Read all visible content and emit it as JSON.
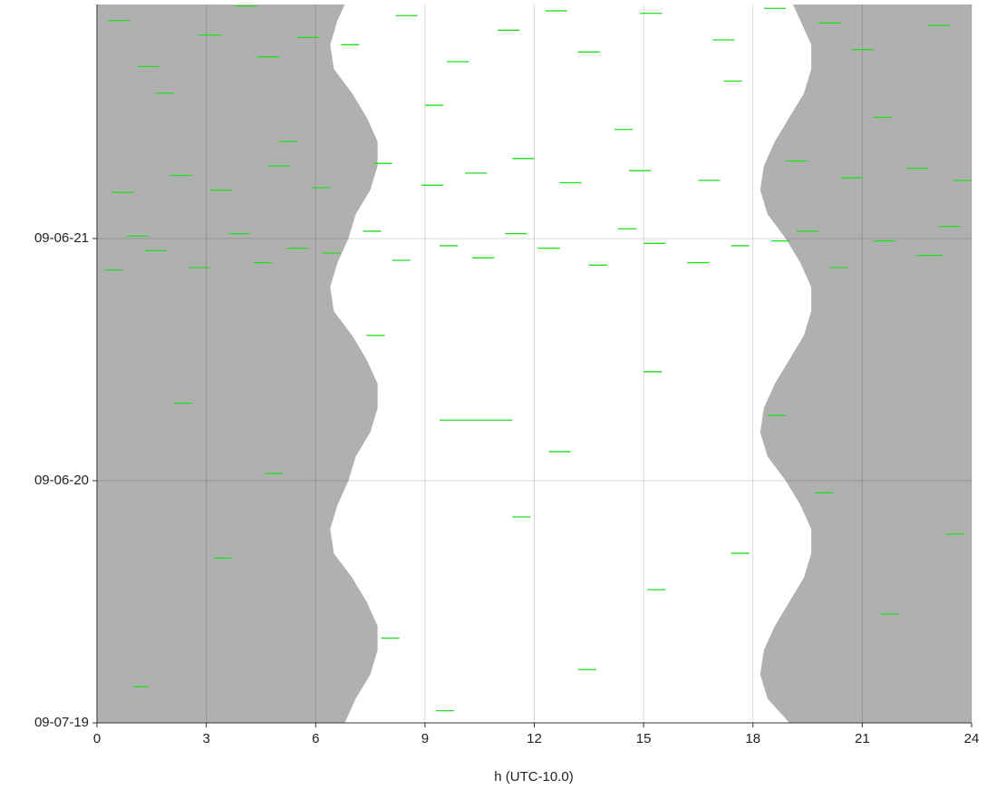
{
  "chart_data": {
    "type": "daynight",
    "xlabel": "h (UTC-10.0)",
    "xlim": [
      0,
      24
    ],
    "xticks": [
      0,
      3,
      6,
      9,
      12,
      15,
      18,
      21,
      24
    ],
    "ylim": [
      0,
      2.966
    ],
    "yticks": [
      {
        "value": 0,
        "label": "09-07-19"
      },
      {
        "value": 1,
        "label": "09-06-20"
      },
      {
        "value": 2,
        "label": "09-06-21"
      }
    ],
    "grid": true,
    "night_color": "#b0b0b0",
    "event_color": "#22dd22",
    "y": [
      0,
      0.1,
      0.2,
      0.3,
      0.4,
      0.5,
      0.6,
      0.7,
      0.8,
      0.9,
      1.0,
      1.1,
      1.2,
      1.3,
      1.4,
      1.5,
      1.6,
      1.7,
      1.8,
      1.9,
      2.0,
      2.1,
      2.2,
      2.3,
      2.4,
      2.5,
      2.6,
      2.7,
      2.8,
      2.9,
      2.966
    ],
    "sunrise": [
      6.8,
      7.1,
      7.5,
      7.7,
      7.7,
      7.4,
      7.0,
      6.5,
      6.4,
      6.6,
      6.9,
      7.1,
      7.5,
      7.7,
      7.7,
      7.4,
      7.0,
      6.5,
      6.4,
      6.6,
      6.9,
      7.1,
      7.5,
      7.7,
      7.7,
      7.4,
      7.0,
      6.5,
      6.4,
      6.6,
      6.8
    ],
    "sunset": [
      19.0,
      18.4,
      18.2,
      18.3,
      18.6,
      19.0,
      19.4,
      19.6,
      19.6,
      19.3,
      18.9,
      18.4,
      18.2,
      18.3,
      18.6,
      19.0,
      19.4,
      19.6,
      19.6,
      19.3,
      18.9,
      18.4,
      18.2,
      18.3,
      18.6,
      19.0,
      19.4,
      19.6,
      19.6,
      19.3,
      19.1
    ],
    "events": [
      {
        "y": 1.87,
        "start": 0.2,
        "end": 0.7
      },
      {
        "y": 1.88,
        "start": 2.5,
        "end": 3.1
      },
      {
        "y": 1.9,
        "start": 4.3,
        "end": 4.8
      },
      {
        "y": 1.91,
        "start": 8.1,
        "end": 8.6
      },
      {
        "y": 1.92,
        "start": 10.3,
        "end": 10.9
      },
      {
        "y": 1.89,
        "start": 13.5,
        "end": 14.0
      },
      {
        "y": 1.9,
        "start": 16.2,
        "end": 16.8
      },
      {
        "y": 1.88,
        "start": 20.1,
        "end": 20.6
      },
      {
        "y": 1.93,
        "start": 22.5,
        "end": 23.2
      },
      {
        "y": 1.95,
        "start": 1.3,
        "end": 1.9
      },
      {
        "y": 1.96,
        "start": 5.2,
        "end": 5.8
      },
      {
        "y": 1.97,
        "start": 9.4,
        "end": 9.9
      },
      {
        "y": 1.96,
        "start": 12.1,
        "end": 12.7
      },
      {
        "y": 1.98,
        "start": 15.0,
        "end": 15.6
      },
      {
        "y": 1.97,
        "start": 17.4,
        "end": 17.9
      },
      {
        "y": 1.99,
        "start": 21.3,
        "end": 21.9
      },
      {
        "y": 2.01,
        "start": 0.8,
        "end": 1.4
      },
      {
        "y": 2.02,
        "start": 3.6,
        "end": 4.2
      },
      {
        "y": 2.03,
        "start": 7.3,
        "end": 7.8
      },
      {
        "y": 2.02,
        "start": 11.2,
        "end": 11.8
      },
      {
        "y": 2.04,
        "start": 14.3,
        "end": 14.8
      },
      {
        "y": 2.03,
        "start": 19.2,
        "end": 19.8
      },
      {
        "y": 2.05,
        "start": 23.1,
        "end": 23.7
      },
      {
        "y": 1.94,
        "start": 6.2,
        "end": 6.7
      },
      {
        "y": 1.99,
        "start": 18.5,
        "end": 19.0
      },
      {
        "y": 2.19,
        "start": 0.4,
        "end": 1.0
      },
      {
        "y": 2.2,
        "start": 3.1,
        "end": 3.7
      },
      {
        "y": 2.21,
        "start": 5.9,
        "end": 6.4
      },
      {
        "y": 2.22,
        "start": 8.9,
        "end": 9.5
      },
      {
        "y": 2.23,
        "start": 12.7,
        "end": 13.3
      },
      {
        "y": 2.24,
        "start": 16.5,
        "end": 17.1
      },
      {
        "y": 2.25,
        "start": 20.4,
        "end": 21.0
      },
      {
        "y": 2.26,
        "start": 2.0,
        "end": 2.6
      },
      {
        "y": 2.27,
        "start": 10.1,
        "end": 10.7
      },
      {
        "y": 2.28,
        "start": 14.6,
        "end": 15.2
      },
      {
        "y": 2.29,
        "start": 22.2,
        "end": 22.8
      },
      {
        "y": 2.3,
        "start": 4.7,
        "end": 5.3
      },
      {
        "y": 2.31,
        "start": 7.6,
        "end": 8.1
      },
      {
        "y": 2.32,
        "start": 18.9,
        "end": 19.5
      },
      {
        "y": 2.33,
        "start": 11.4,
        "end": 12.0
      },
      {
        "y": 2.24,
        "start": 23.5,
        "end": 24.0
      },
      {
        "y": 2.71,
        "start": 1.1,
        "end": 1.7
      },
      {
        "y": 2.73,
        "start": 9.6,
        "end": 10.2
      },
      {
        "y": 2.75,
        "start": 4.4,
        "end": 5.0
      },
      {
        "y": 2.77,
        "start": 13.2,
        "end": 13.8
      },
      {
        "y": 2.78,
        "start": 20.7,
        "end": 21.3
      },
      {
        "y": 2.8,
        "start": 6.7,
        "end": 7.2
      },
      {
        "y": 2.82,
        "start": 16.9,
        "end": 17.5
      },
      {
        "y": 2.84,
        "start": 2.8,
        "end": 3.4
      },
      {
        "y": 2.86,
        "start": 11.0,
        "end": 11.6
      },
      {
        "y": 2.88,
        "start": 22.8,
        "end": 23.4
      },
      {
        "y": 2.9,
        "start": 0.3,
        "end": 0.9
      },
      {
        "y": 2.92,
        "start": 8.2,
        "end": 8.8
      },
      {
        "y": 2.93,
        "start": 14.9,
        "end": 15.5
      },
      {
        "y": 2.95,
        "start": 18.3,
        "end": 18.9
      },
      {
        "y": 2.96,
        "start": 3.8,
        "end": 4.4
      },
      {
        "y": 2.94,
        "start": 12.3,
        "end": 12.9
      },
      {
        "y": 2.89,
        "start": 19.8,
        "end": 20.4
      },
      {
        "y": 2.83,
        "start": 5.5,
        "end": 6.1
      },
      {
        "y": 0.05,
        "start": 9.3,
        "end": 9.8
      },
      {
        "y": 0.15,
        "start": 1.0,
        "end": 1.4
      },
      {
        "y": 0.22,
        "start": 13.2,
        "end": 13.7
      },
      {
        "y": 0.35,
        "start": 7.8,
        "end": 8.3
      },
      {
        "y": 0.45,
        "start": 21.5,
        "end": 22.0
      },
      {
        "y": 0.55,
        "start": 15.1,
        "end": 15.6
      },
      {
        "y": 0.68,
        "start": 3.2,
        "end": 3.7
      },
      {
        "y": 0.7,
        "start": 17.4,
        "end": 17.9
      },
      {
        "y": 0.78,
        "start": 23.3,
        "end": 23.8
      },
      {
        "y": 0.85,
        "start": 11.4,
        "end": 11.9
      },
      {
        "y": 0.95,
        "start": 19.7,
        "end": 20.2
      },
      {
        "y": 1.03,
        "start": 4.6,
        "end": 5.1
      },
      {
        "y": 1.12,
        "start": 12.4,
        "end": 13.0
      },
      {
        "y": 1.25,
        "start": 9.4,
        "end": 11.4
      },
      {
        "y": 1.27,
        "start": 18.4,
        "end": 18.9
      },
      {
        "y": 1.32,
        "start": 2.1,
        "end": 2.6
      },
      {
        "y": 1.45,
        "start": 15.0,
        "end": 15.5
      },
      {
        "y": 1.6,
        "start": 7.4,
        "end": 7.9
      },
      {
        "y": 2.4,
        "start": 5.0,
        "end": 5.5
      },
      {
        "y": 2.45,
        "start": 14.2,
        "end": 14.7
      },
      {
        "y": 2.5,
        "start": 21.3,
        "end": 21.8
      },
      {
        "y": 2.55,
        "start": 9.0,
        "end": 9.5
      },
      {
        "y": 2.6,
        "start": 1.6,
        "end": 2.1
      },
      {
        "y": 2.65,
        "start": 17.2,
        "end": 17.7
      }
    ]
  }
}
